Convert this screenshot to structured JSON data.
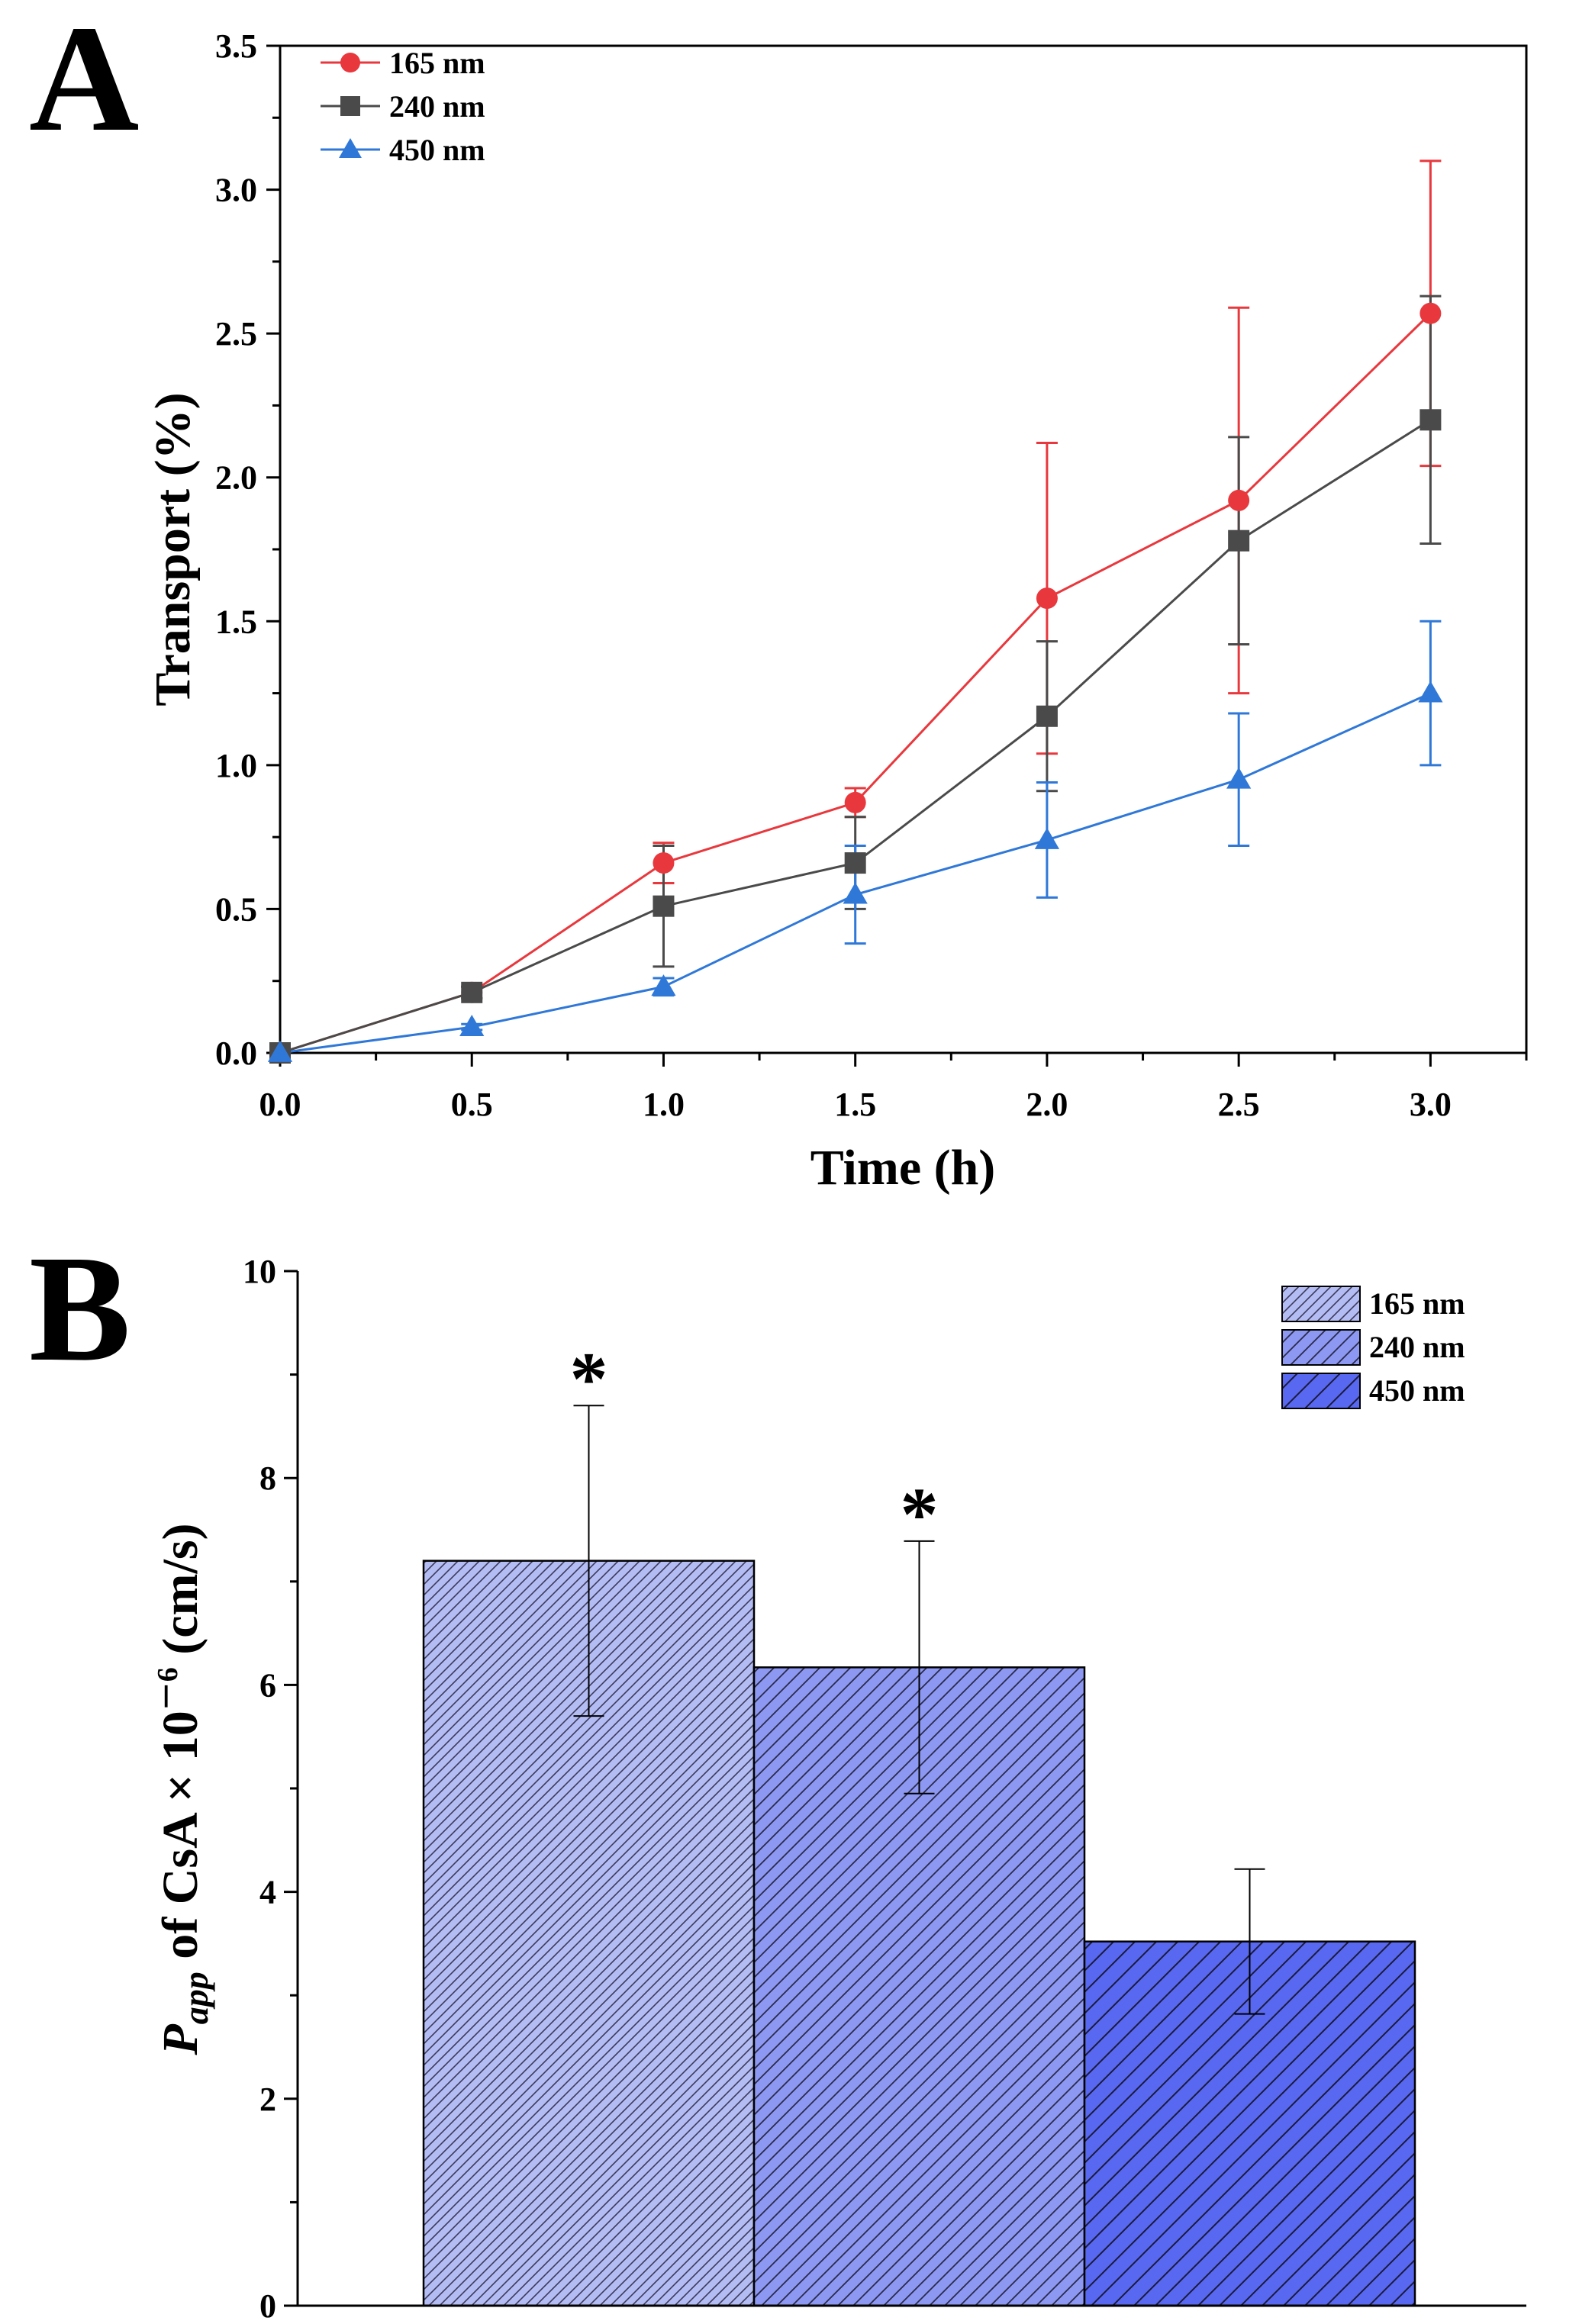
{
  "panel_labels": {
    "a": "A",
    "b": "B"
  },
  "chart_data": [
    {
      "type": "line",
      "panel": "A",
      "title": "",
      "xlabel": "Time (h)",
      "ylabel": "Transport (%)",
      "xlim": [
        0,
        3.25
      ],
      "ylim": [
        0,
        3.5
      ],
      "xticks": [
        0.0,
        0.5,
        1.0,
        1.5,
        2.0,
        2.5,
        3.0
      ],
      "xtick_labels": [
        "0.0",
        "0.5",
        "1.0",
        "1.5",
        "2.0",
        "2.5",
        "3.0"
      ],
      "yticks": [
        0.0,
        0.5,
        1.0,
        1.5,
        2.0,
        2.5,
        3.0,
        3.5
      ],
      "ytick_labels": [
        "0.0",
        "0.5",
        "1.0",
        "1.5",
        "2.0",
        "2.5",
        "3.0",
        "3.5"
      ],
      "x": [
        0,
        0.5,
        1.0,
        1.5,
        2.0,
        2.5,
        3.0
      ],
      "legend_position": "top-left",
      "series": [
        {
          "name": "165 nm",
          "marker": "circle",
          "color": "#e8383d",
          "values": [
            0.0,
            0.21,
            0.66,
            0.87,
            1.58,
            1.92,
            2.57
          ],
          "errors": [
            0.0,
            0.02,
            0.07,
            0.05,
            0.54,
            0.67,
            0.53
          ]
        },
        {
          "name": "240 nm",
          "marker": "square",
          "color": "#4a4a4a",
          "values": [
            0.0,
            0.21,
            0.51,
            0.66,
            1.17,
            1.78,
            2.2
          ],
          "errors": [
            0.0,
            0.02,
            0.21,
            0.16,
            0.26,
            0.36,
            0.43
          ]
        },
        {
          "name": "450 nm",
          "marker": "triangle",
          "color": "#2f78d8",
          "values": [
            0.0,
            0.09,
            0.23,
            0.55,
            0.74,
            0.95,
            1.25
          ],
          "errors": [
            0.0,
            0.01,
            0.03,
            0.17,
            0.2,
            0.23,
            0.25
          ]
        }
      ]
    },
    {
      "type": "bar",
      "panel": "B",
      "title": "",
      "xlabel": "",
      "ylabel_italic": "P",
      "ylabel_sub": "app",
      "ylabel_rest": " of CsA × 10",
      "ylabel_sup": "－6",
      "ylabel_units": " (cm/s)",
      "ylim": [
        0,
        10
      ],
      "yticks": [
        0,
        2,
        4,
        6,
        8,
        10
      ],
      "ytick_labels": [
        "0",
        "2",
        "4",
        "6",
        "8",
        "10"
      ],
      "legend_position": "top-right",
      "categories": [
        "165 nm",
        "240 nm",
        "450 nm"
      ],
      "values": [
        7.2,
        6.17,
        3.52
      ],
      "errors": [
        1.5,
        1.22,
        0.7
      ],
      "significance": [
        "*",
        "*",
        ""
      ],
      "colors": [
        "#b4bcf4",
        "#8c98f2",
        "#5868f0"
      ]
    }
  ]
}
